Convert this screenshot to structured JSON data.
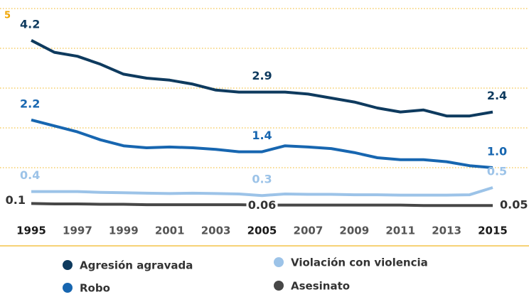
{
  "chart_data": {
    "type": "line",
    "categories": [
      "1995",
      null,
      "1997",
      null,
      "1999",
      null,
      "2001",
      null,
      "2003",
      null,
      "2005",
      null,
      "2007",
      null,
      "2009",
      null,
      "2011",
      null,
      "2013",
      null,
      "2015"
    ],
    "series": [
      {
        "name": "Agresión agravada",
        "color": "#0e3a5e",
        "values": [
          4.2,
          3.9,
          3.8,
          3.6,
          3.35,
          3.25,
          3.2,
          3.1,
          2.95,
          2.9,
          2.9,
          2.9,
          2.85,
          2.75,
          2.65,
          2.5,
          2.4,
          2.45,
          2.3,
          2.3,
          2.4
        ],
        "value_labels": [
          "4.2",
          null,
          null,
          null,
          null,
          null,
          null,
          null,
          null,
          null,
          "2.9",
          null,
          null,
          null,
          null,
          null,
          null,
          null,
          null,
          null,
          "2.4"
        ]
      },
      {
        "name": "Robo",
        "color": "#1766b0",
        "values": [
          2.2,
          2.05,
          1.9,
          1.7,
          1.55,
          1.5,
          1.52,
          1.5,
          1.46,
          1.4,
          1.4,
          1.55,
          1.52,
          1.48,
          1.38,
          1.25,
          1.2,
          1.2,
          1.15,
          1.05,
          1.0
        ],
        "value_labels": [
          "2.2",
          null,
          null,
          null,
          null,
          null,
          null,
          null,
          null,
          null,
          "1.4",
          null,
          null,
          null,
          null,
          null,
          null,
          null,
          null,
          null,
          "1.0"
        ]
      },
      {
        "name": "Violación con violencia",
        "color": "#9cc3e8",
        "values": [
          0.4,
          0.4,
          0.4,
          0.38,
          0.37,
          0.36,
          0.35,
          0.36,
          0.35,
          0.34,
          0.3,
          0.34,
          0.33,
          0.33,
          0.32,
          0.32,
          0.31,
          0.31,
          0.31,
          0.32,
          0.5
        ],
        "value_labels": [
          "0.4",
          null,
          null,
          null,
          null,
          null,
          null,
          null,
          null,
          null,
          "0.3",
          null,
          null,
          null,
          null,
          null,
          null,
          null,
          null,
          null,
          "0.5"
        ]
      },
      {
        "name": "Asesinato",
        "color": "#474747",
        "values": [
          0.1,
          0.09,
          0.09,
          0.08,
          0.08,
          0.07,
          0.07,
          0.07,
          0.07,
          0.07,
          0.06,
          0.06,
          0.06,
          0.06,
          0.06,
          0.06,
          0.06,
          0.05,
          0.05,
          0.05,
          0.05
        ],
        "value_labels": [
          "0.1",
          null,
          null,
          null,
          null,
          null,
          null,
          null,
          null,
          null,
          "0.06",
          null,
          null,
          null,
          null,
          null,
          null,
          null,
          null,
          null,
          "0.05"
        ]
      }
    ],
    "ylim": [
      0,
      5
    ],
    "yticks": [
      5
    ],
    "gridlines": [
      1,
      2,
      3,
      4,
      5
    ],
    "grid": true
  }
}
